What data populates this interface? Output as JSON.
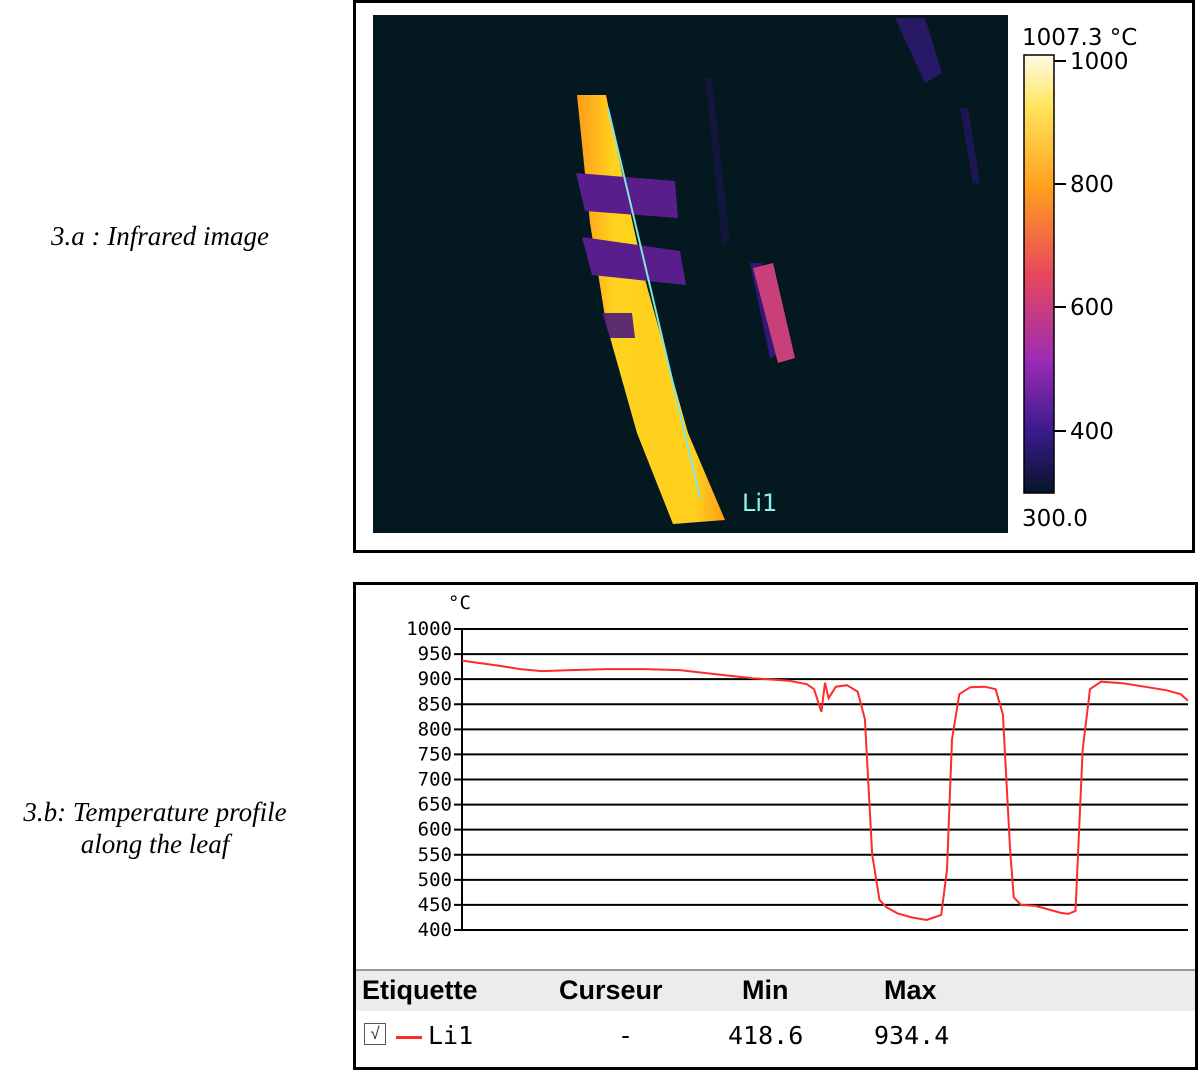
{
  "captions": {
    "a": "3.a : Infrared image",
    "b_line1": "3.b: Temperature profile",
    "b_line2": "along the leaf"
  },
  "infrared": {
    "scale_max": "1007.3 °C",
    "scale_min": "300.0",
    "scale_ticks": [
      "1000",
      "800",
      "600",
      "400"
    ],
    "line_label": "Li1",
    "colors": {
      "background": "#041820",
      "hot": "#ffd21e",
      "warm": "#ff8c1a",
      "band": "#5a1e8c",
      "line": "#7fe6e0"
    }
  },
  "chart_data": {
    "type": "line",
    "ylabel": "°C",
    "ylim": [
      400,
      1000
    ],
    "yticks": [
      1000,
      950,
      900,
      850,
      800,
      750,
      700,
      650,
      600,
      550,
      500,
      450,
      400
    ],
    "grid": true,
    "series": [
      {
        "name": "Li1",
        "color": "#ff2a2a",
        "x": [
          0,
          2,
          5,
          8,
          11,
          15,
          20,
          25,
          30,
          35,
          40,
          45,
          50,
          47.5,
          48.5,
          49.5,
          50.5,
          51.5,
          53,
          54.5,
          55.5,
          56.5,
          57.5,
          58.5,
          60,
          62,
          64,
          65,
          66,
          66.8,
          67.5,
          68.5,
          70,
          72,
          73.5,
          74.5,
          75.5,
          76,
          77,
          79,
          81,
          82.5,
          83.5,
          84.5,
          85.5,
          86.5,
          88,
          91,
          94,
          97,
          99,
          100
        ],
        "y": [
          937,
          933,
          927,
          920,
          916,
          918,
          920,
          920,
          918,
          910,
          902,
          897,
          893,
          890,
          880,
          835,
          862,
          885,
          888,
          875,
          820,
          550,
          460,
          445,
          433,
          425,
          420,
          425,
          430,
          520,
          780,
          870,
          884,
          885,
          880,
          830,
          560,
          465,
          450,
          448,
          440,
          434,
          432,
          438,
          760,
          880,
          895,
          892,
          885,
          878,
          870,
          857
        ]
      }
    ]
  },
  "legend": {
    "headers": {
      "label": "Etiquette",
      "cursor": "Curseur",
      "min": "Min",
      "max": "Max"
    },
    "row": {
      "label": "Li1",
      "cursor": "-",
      "min": "418.6",
      "max": "934.4",
      "checked": "√"
    }
  }
}
